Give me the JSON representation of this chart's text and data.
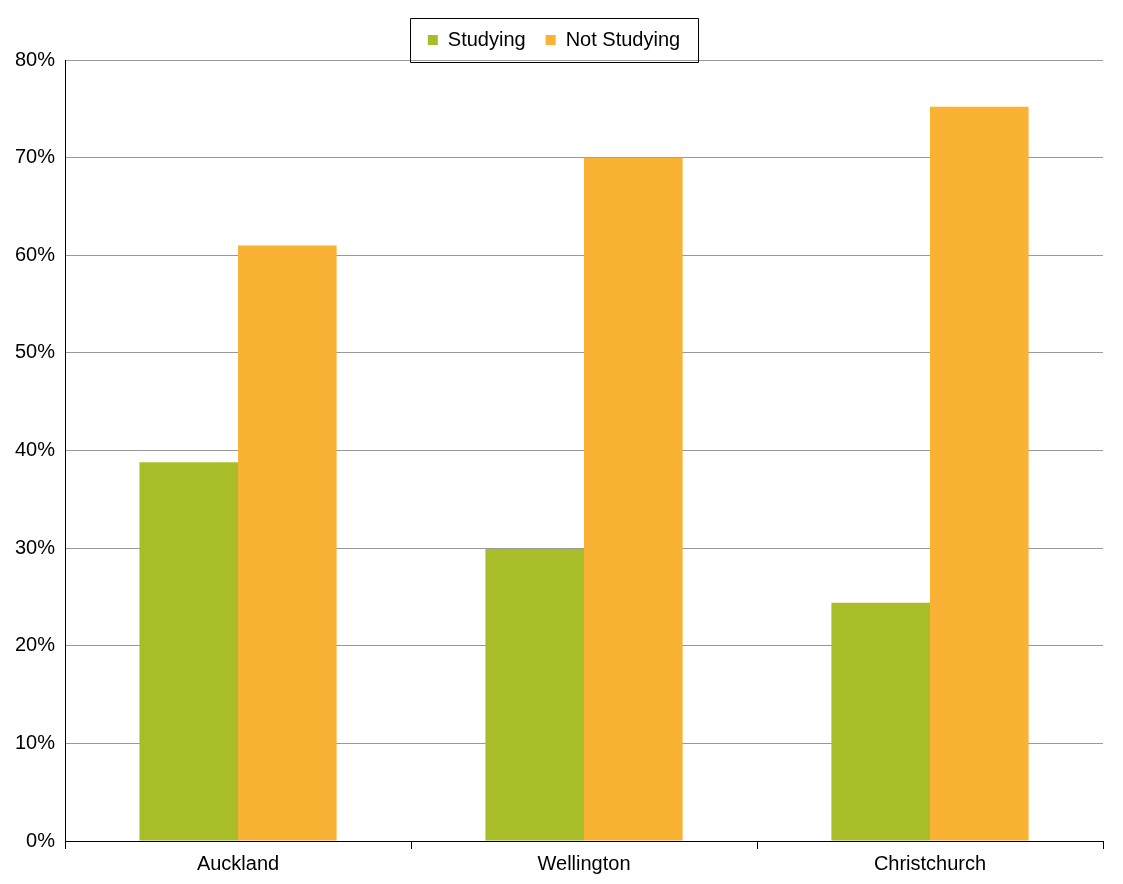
{
  "chart_data": {
    "type": "bar",
    "categories": [
      "Auckland",
      "Wellington",
      "Christchurch"
    ],
    "series": [
      {
        "name": "Studying",
        "color": "#a9bd28",
        "values": [
          38.8,
          29.9,
          24.4
        ]
      },
      {
        "name": "Not Studying",
        "color": "#f9b233",
        "values": [
          61.0,
          70.0,
          75.2
        ]
      }
    ],
    "ylim": [
      0,
      80
    ],
    "yticks": [
      {
        "value": 0,
        "label": "0%"
      },
      {
        "value": 10,
        "label": "10%"
      },
      {
        "value": 20,
        "label": "20%"
      },
      {
        "value": 30,
        "label": "30%"
      },
      {
        "value": 40,
        "label": "40%"
      },
      {
        "value": 50,
        "label": "50%"
      },
      {
        "value": 60,
        "label": "60%"
      },
      {
        "value": 70,
        "label": "70%"
      },
      {
        "value": 80,
        "label": "80%"
      }
    ],
    "grid": "y",
    "legend": "top"
  }
}
